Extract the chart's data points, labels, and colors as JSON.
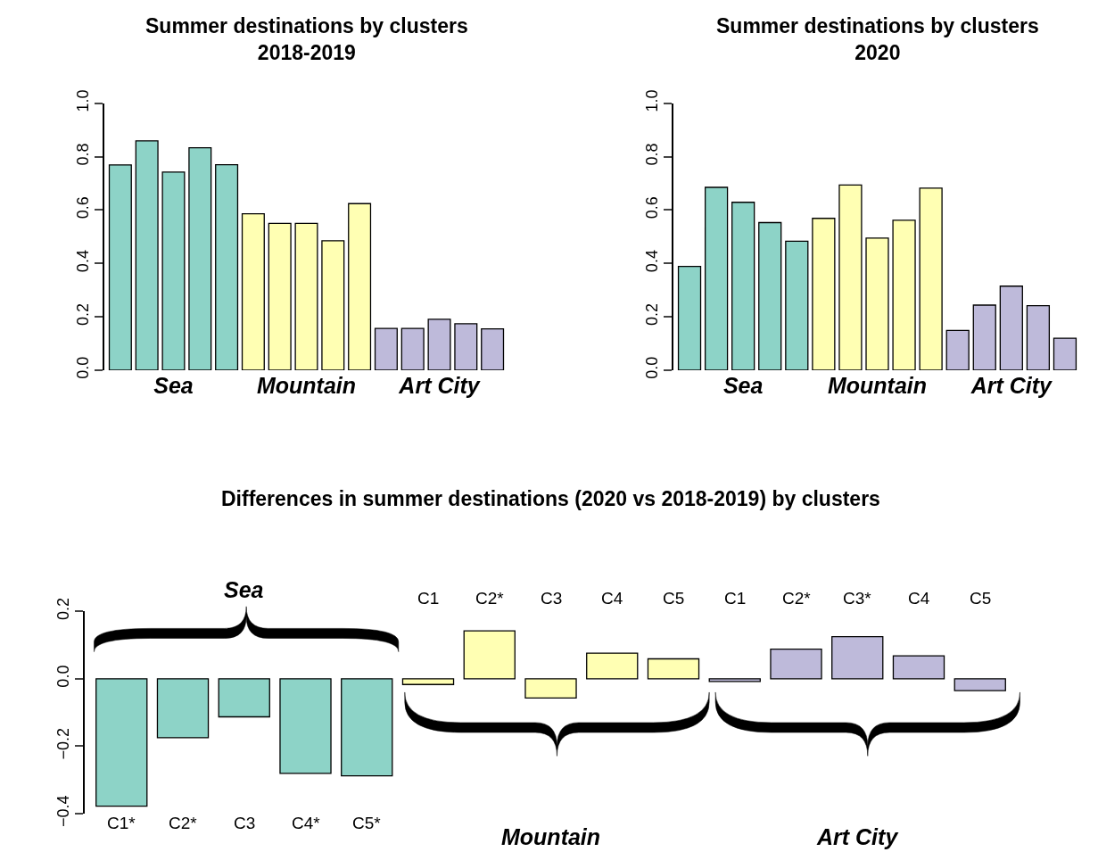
{
  "chart_data": [
    {
      "type": "bar",
      "title": "Summer destinations by clusters\n2018-2019",
      "categories": [
        null,
        null,
        "Sea",
        null,
        null,
        null,
        null,
        "Mountain",
        null,
        null,
        null,
        null,
        "Art City",
        null,
        null
      ],
      "values": [
        0.769,
        0.859,
        0.742,
        0.833,
        0.77,
        0.586,
        0.55,
        0.55,
        0.485,
        0.624,
        0.157,
        0.157,
        0.191,
        0.174,
        0.155
      ],
      "colors": [
        "#8dd3c7",
        "#8dd3c7",
        "#8dd3c7",
        "#8dd3c7",
        "#8dd3c7",
        "#ffffb3",
        "#ffffb3",
        "#ffffb3",
        "#ffffb3",
        "#ffffb3",
        "#bebada",
        "#bebada",
        "#bebada",
        "#bebada",
        "#bebada"
      ],
      "ylim": [
        0,
        1
      ],
      "yticks": [
        {
          "value": 0,
          "label": "0.0"
        },
        {
          "value": 0.2,
          "label": "0.2"
        },
        {
          "value": 0.4,
          "label": "0.4"
        },
        {
          "value": 0.6,
          "label": "0.6"
        },
        {
          "value": 0.8,
          "label": "0.8"
        },
        {
          "value": 1,
          "label": "1.0"
        }
      ]
    },
    {
      "type": "bar",
      "title": "Summer destinations by clusters\n2020",
      "categories": [
        null,
        null,
        "Sea",
        null,
        null,
        null,
        null,
        "Mountain",
        null,
        null,
        null,
        null,
        "Art City",
        null,
        null
      ],
      "values": [
        0.389,
        0.685,
        0.629,
        0.553,
        0.483,
        0.569,
        0.694,
        0.495,
        0.562,
        0.682,
        0.149,
        0.244,
        0.315,
        0.242,
        0.12
      ],
      "colors": [
        "#8dd3c7",
        "#8dd3c7",
        "#8dd3c7",
        "#8dd3c7",
        "#8dd3c7",
        "#ffffb3",
        "#ffffb3",
        "#ffffb3",
        "#ffffb3",
        "#ffffb3",
        "#bebada",
        "#bebada",
        "#bebada",
        "#bebada",
        "#bebada"
      ],
      "ylim": [
        0,
        1
      ],
      "yticks": [
        {
          "value": 0,
          "label": "0.0"
        },
        {
          "value": 0.2,
          "label": "0.2"
        },
        {
          "value": 0.4,
          "label": "0.4"
        },
        {
          "value": 0.6,
          "label": "0.6"
        },
        {
          "value": 0.8,
          "label": "0.8"
        },
        {
          "value": 1,
          "label": "1.0"
        }
      ]
    },
    {
      "type": "bar",
      "title": "Differences in summer destinations (2020 vs 2018-2019) by clusters",
      "categories": [
        "C1*",
        "C2*",
        "C3",
        "C4*",
        "C5*",
        "C1",
        "C2*",
        "C3",
        "C4",
        "C5",
        "C1",
        "C2*",
        "C3*",
        "C4",
        "C5"
      ],
      "values": [
        -0.378,
        -0.175,
        -0.113,
        -0.281,
        -0.288,
        -0.017,
        0.142,
        -0.057,
        0.076,
        0.059,
        -0.008,
        0.088,
        0.125,
        0.068,
        -0.035
      ],
      "colors": [
        "#8dd3c7",
        "#8dd3c7",
        "#8dd3c7",
        "#8dd3c7",
        "#8dd3c7",
        "#ffffb3",
        "#ffffb3",
        "#ffffb3",
        "#ffffb3",
        "#ffffb3",
        "#bebada",
        "#bebada",
        "#bebada",
        "#bebada",
        "#bebada"
      ],
      "annotations": [
        "Sea",
        "Mountain",
        "Art City"
      ],
      "ylim": [
        -0.4,
        0.2
      ],
      "yticks": [
        {
          "value": -0.4,
          "label": "−0.4"
        },
        {
          "value": -0.2,
          "label": "−0.2"
        },
        {
          "value": 0,
          "label": "0.0"
        },
        {
          "value": 0.2,
          "label": "0.2"
        }
      ]
    }
  ]
}
